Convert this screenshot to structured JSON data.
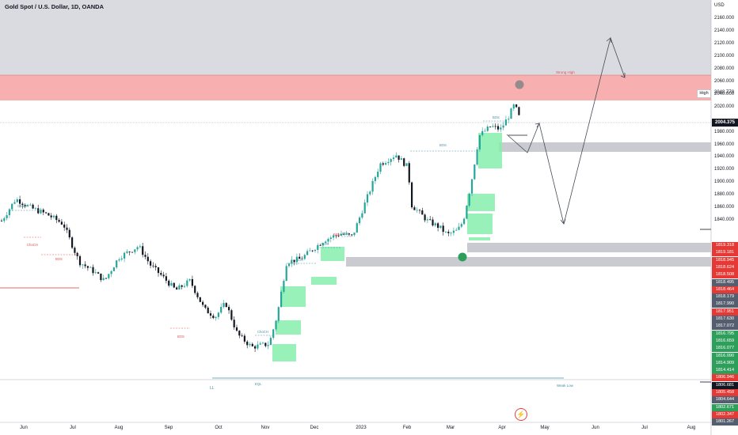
{
  "header": {
    "symbol": "Gold Spot / U.S. Dollar, 1D, OANDA",
    "currency": "USD"
  },
  "price_axis": {
    "ticks": [
      "2160.000",
      "2140.000",
      "2120.000",
      "2100.000",
      "2080.000",
      "2060.000",
      "2040.000",
      "2020.000",
      "1980.000",
      "1960.000",
      "1940.000",
      "1920.000",
      "1900.000",
      "1880.000",
      "1860.000",
      "1840.000"
    ],
    "last_price": "2004.375",
    "high_value": "2048.770",
    "high_label": "High"
  },
  "side_tags": [
    {
      "text": "1819.318",
      "color": "#e53935"
    },
    {
      "text": "1819.181",
      "color": "#e53935"
    },
    {
      "text": "1818.945",
      "color": "#e53935"
    },
    {
      "text": "1818.624",
      "color": "#e53935"
    },
    {
      "text": "1818.508",
      "color": "#e53935"
    },
    {
      "text": "1818.495",
      "color": "#555e6e"
    },
    {
      "text": "1818.464",
      "color": "#e53935"
    },
    {
      "text": "1818.179",
      "color": "#555e6e"
    },
    {
      "text": "1817.990",
      "color": "#555e6e"
    },
    {
      "text": "1817.951",
      "color": "#e53935"
    },
    {
      "text": "1817.630",
      "color": "#555e6e"
    },
    {
      "text": "1817.072",
      "color": "#555e6e"
    },
    {
      "text": "1816.795",
      "color": "#2e9e5b"
    },
    {
      "text": "1816.659",
      "color": "#2e9e5b"
    },
    {
      "text": "1816.077",
      "color": "#2e9e5b"
    },
    {
      "text": "1816.090",
      "color": "#2e9e5b"
    },
    {
      "text": "1814.909",
      "color": "#2e9e5b"
    },
    {
      "text": "1814.414",
      "color": "#2e9e5b"
    },
    {
      "text": "1806.946",
      "color": "#e53935"
    },
    {
      "text": "1806.681",
      "color": "#131722"
    },
    {
      "text": "1805.458",
      "color": "#e53935"
    },
    {
      "text": "1804.644",
      "color": "#555e6e"
    },
    {
      "text": "1802.671",
      "color": "#2e9e5b"
    },
    {
      "text": "1802.347",
      "color": "#e53935"
    },
    {
      "text": "1801.267",
      "color": "#555e6e"
    }
  ],
  "time_axis": [
    "Jun",
    "Jul",
    "Aug",
    "Sep",
    "Oct",
    "Nov",
    "Dec",
    "2023",
    "Feb",
    "Mar",
    "Apr",
    "May",
    "Jun",
    "Jul",
    "Aug"
  ],
  "annotations": {
    "strong_high": "Strong High",
    "weak_low": "Weak Low",
    "choch": "ChoCH",
    "bos": "BOS",
    "eqh": "EQH",
    "eql": "EQL",
    "ll": "LL"
  },
  "colors": {
    "bull": "#26a69a",
    "bear": "#131722",
    "supply_zone": "#f7a1a1",
    "demand_block": "#86efac",
    "gray_zone": "#c9cbd1",
    "bg_top": "#d9dbe0"
  }
}
